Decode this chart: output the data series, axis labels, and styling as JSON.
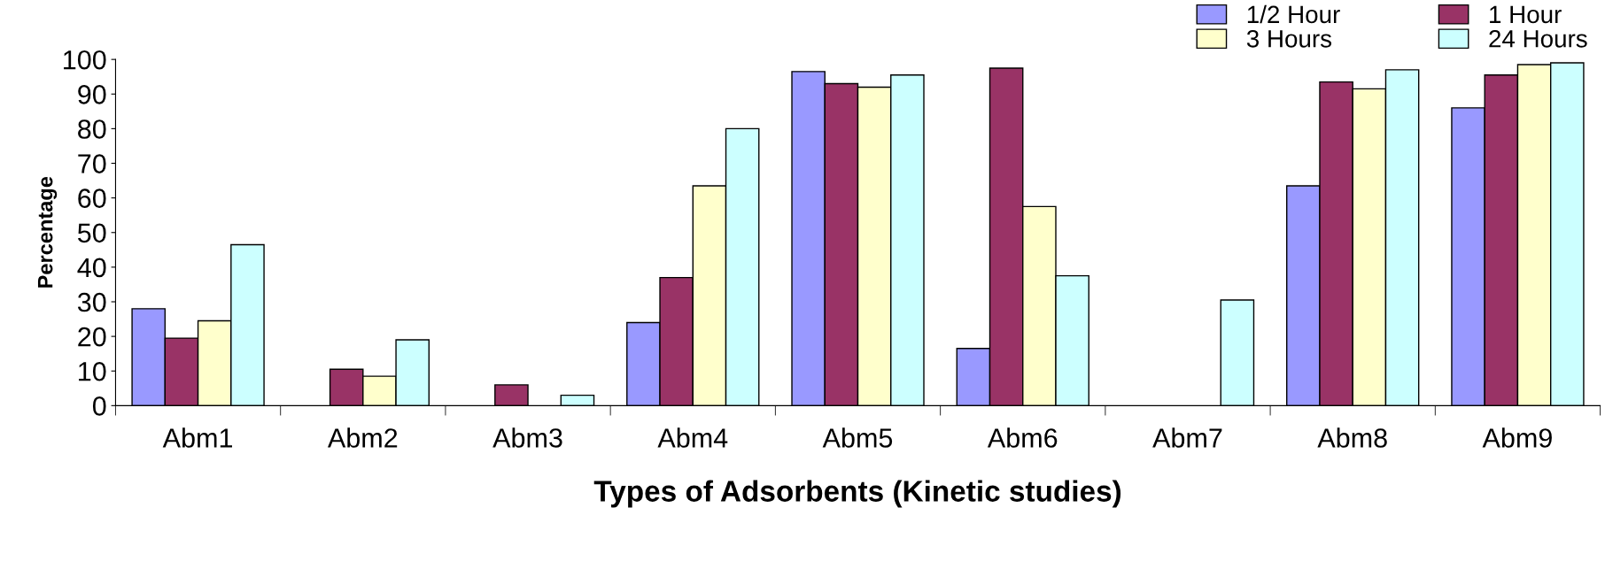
{
  "chart_data": {
    "type": "bar",
    "xlabel": "Types of Adsorbents (Kinetic studies)",
    "ylabel": "Percentage",
    "categories": [
      "Abm1",
      "Abm2",
      "Abm3",
      "Abm4",
      "Abm5",
      "Abm6",
      "Abm7",
      "Abm8",
      "Abm9"
    ],
    "series": [
      {
        "name": "1/2 Hour",
        "color": "#9999ff",
        "values": [
          28,
          null,
          null,
          24,
          96.5,
          16.5,
          null,
          63.5,
          86
        ]
      },
      {
        "name": "1 Hour",
        "color": "#993366",
        "values": [
          19.5,
          10.5,
          6,
          37,
          93,
          97.5,
          null,
          93.5,
          95.5
        ]
      },
      {
        "name": "3 Hours",
        "color": "#ffffcc",
        "values": [
          24.5,
          8.5,
          null,
          63.5,
          92,
          57.5,
          null,
          91.5,
          98.5
        ]
      },
      {
        "name": "24 Hours",
        "color": "#ccffff",
        "values": [
          46.5,
          19,
          3,
          80,
          95.5,
          37.5,
          30.5,
          97,
          99
        ]
      }
    ],
    "ylim": [
      0,
      100
    ],
    "yticks": [
      0,
      10,
      20,
      30,
      40,
      50,
      60,
      70,
      80,
      90,
      100
    ],
    "grid": false,
    "legend": "top right"
  }
}
